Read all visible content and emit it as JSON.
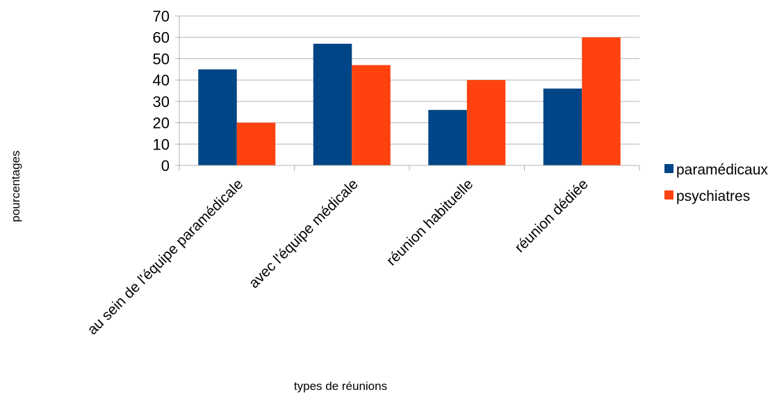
{
  "chart_data": {
    "type": "bar",
    "title": "",
    "xlabel": "types de réunions",
    "ylabel": "pourcentages",
    "categories": [
      "au sein de l'équipe paramédicale",
      "avec l'équipe médicale",
      "réunion habituelle",
      "réunion dédiée"
    ],
    "series": [
      {
        "name": "paramédicaux",
        "values": [
          45,
          57,
          26,
          36
        ],
        "color": "#004586"
      },
      {
        "name": "psychiatres",
        "values": [
          20,
          47,
          40,
          60
        ],
        "color": "#ff420e"
      }
    ],
    "ylim": [
      0,
      70
    ],
    "yticks": [
      0,
      10,
      20,
      30,
      40,
      50,
      60,
      70
    ],
    "grid": true,
    "legend_position": "right"
  }
}
